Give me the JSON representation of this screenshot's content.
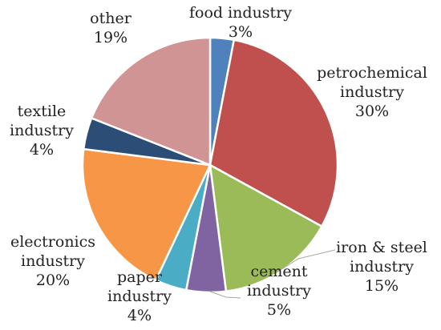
{
  "chart_data": {
    "type": "pie",
    "title": "",
    "slices": [
      {
        "name": "food industry",
        "label_lines": [
          "food industry",
          "3%"
        ],
        "value": 3,
        "color": "#4F81BD"
      },
      {
        "name": "petrochemical industry",
        "label_lines": [
          "petrochemical",
          "industry",
          "30%"
        ],
        "value": 30,
        "color": "#C0504D"
      },
      {
        "name": "iron & steel industry",
        "label_lines": [
          "iron & steel",
          "industry",
          "15%"
        ],
        "value": 15,
        "color": "#9BBB59"
      },
      {
        "name": "cement industry",
        "label_lines": [
          "cement",
          "industry",
          "5%"
        ],
        "value": 5,
        "color": "#8064A2"
      },
      {
        "name": "paper industry",
        "label_lines": [
          "paper",
          "industry",
          "4%"
        ],
        "value": 4,
        "color": "#4BACC6"
      },
      {
        "name": "electronics industry",
        "label_lines": [
          "electronics",
          "industry",
          "20%"
        ],
        "value": 20,
        "color": "#F79646"
      },
      {
        "name": "textile industry",
        "label_lines": [
          "textile",
          "industry",
          "4%"
        ],
        "value": 4,
        "color": "#2C4D75"
      },
      {
        "name": "other",
        "label_lines": [
          "other",
          "19%"
        ],
        "value": 19,
        "color": "#D09494"
      }
    ]
  }
}
